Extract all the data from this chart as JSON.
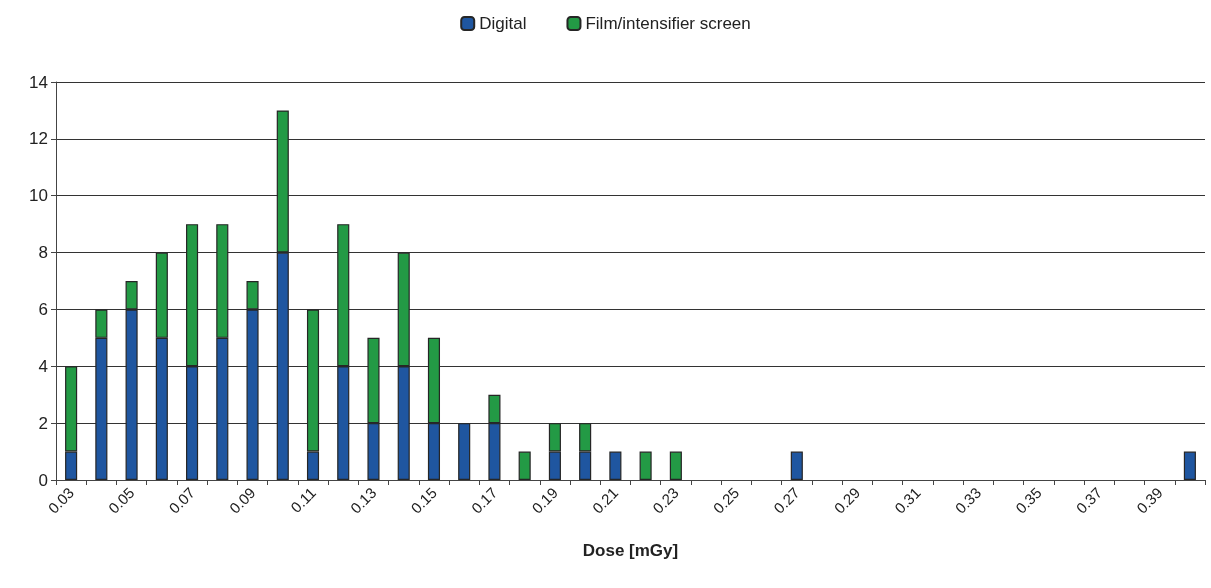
{
  "chart_data": {
    "type": "bar",
    "stacked": true,
    "xlabel": "Dose [mGy]",
    "categories": [
      "0.03",
      null,
      "0.05",
      null,
      "0.07",
      null,
      "0.09",
      null,
      "0.11",
      null,
      "0.13",
      null,
      "0.15",
      null,
      "0.17",
      null,
      "0.19",
      null,
      "0.21",
      null,
      "0.23",
      null,
      "0.25",
      null,
      "0.27",
      null,
      "0.29",
      null,
      "0.31",
      null,
      "0.33",
      null,
      "0.35",
      null,
      "0.37",
      null,
      "0.39",
      null
    ],
    "series": [
      {
        "name": "Digital",
        "color": "#1f56a0",
        "values": [
          1,
          5,
          6,
          5,
          4,
          5,
          6,
          8,
          1,
          4,
          2,
          4,
          2,
          2,
          2,
          0,
          1,
          1,
          1,
          0,
          0,
          0,
          0,
          0,
          1,
          0,
          0,
          0,
          0,
          0,
          0,
          0,
          0,
          0,
          0,
          0,
          0,
          1
        ]
      },
      {
        "name": "Film/intensifier screen",
        "color": "#239a45",
        "values": [
          3,
          1,
          1,
          3,
          5,
          4,
          1,
          5,
          5,
          5,
          3,
          4,
          3,
          0,
          1,
          1,
          1,
          1,
          0,
          1,
          1,
          0,
          0,
          0,
          0,
          0,
          0,
          0,
          0,
          0,
          0,
          0,
          0,
          0,
          0,
          0,
          0,
          0
        ]
      }
    ],
    "ylim": [
      0,
      14
    ],
    "yticks": [
      0,
      2,
      4,
      6,
      8,
      10,
      12,
      14
    ],
    "grid": "y",
    "legend": "top"
  }
}
